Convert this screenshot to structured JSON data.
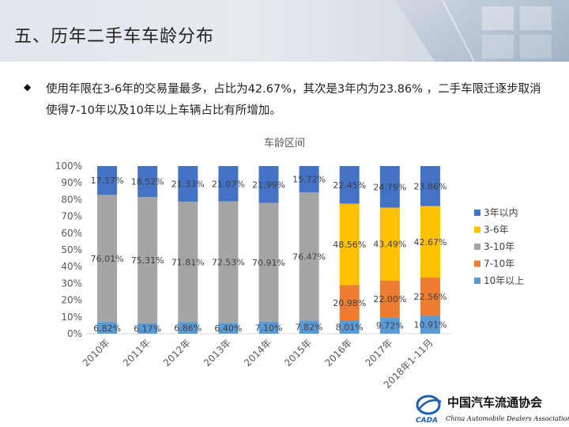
{
  "slide": {
    "title": "五、历年二手车车龄分布",
    "bullet": "使用年限在3-6年的交易量最多，占比为42.67%，其次是3年内为23.86% ，二手车限迁逐步取消使得7-10年以及10年以上车辆占比有所增加。"
  },
  "logo": {
    "mark": "CADA",
    "name_cn": "中国汽车流通协会",
    "name_en": "China Automobile Dealers Association"
  },
  "chart_data": {
    "type": "bar",
    "stacked": "percent",
    "title": "车龄区间",
    "categories": [
      "2010年",
      "2011年",
      "2012年",
      "2013年",
      "2014年",
      "2015年",
      "2016年",
      "2017年",
      "2018年1-11月"
    ],
    "y_ticks": [
      "0%",
      "10%",
      "20%",
      "30%",
      "40%",
      "50%",
      "60%",
      "70%",
      "80%",
      "90%",
      "100%"
    ],
    "ylim": [
      0,
      100
    ],
    "legend_position": "right",
    "series": [
      {
        "name": "10年以上",
        "color": "#5b9bd5",
        "values": [
          6.82,
          6.17,
          6.86,
          6.4,
          7.1,
          7.82,
          8.01,
          9.72,
          10.91
        ],
        "labels": [
          "6.82%",
          "6.17%",
          "6.86%",
          "6.40%",
          "7.10%",
          "7.82%",
          "8.01%",
          "9.72%",
          "10.91%"
        ]
      },
      {
        "name": "7-10年",
        "color": "#ed7d31",
        "values": [
          0,
          0,
          0,
          0,
          0,
          0,
          20.98,
          22.0,
          22.56
        ],
        "labels": [
          "",
          "",
          "",
          "",
          "",
          "",
          "20.98%",
          "22.00%",
          "22.56%"
        ]
      },
      {
        "name": "3-10年",
        "color": "#a5a5a5",
        "values": [
          76.01,
          75.31,
          71.81,
          72.53,
          70.91,
          76.47,
          0,
          0,
          0
        ],
        "labels": [
          "76.01%",
          "75.31%",
          "71.81%",
          "72.53%",
          "70.91%",
          "76.47%",
          "",
          "",
          ""
        ]
      },
      {
        "name": "3-6年",
        "color": "#ffc000",
        "values": [
          0,
          0,
          0,
          0,
          0,
          0,
          48.56,
          43.49,
          42.67
        ],
        "labels": [
          "",
          "",
          "",
          "",
          "",
          "",
          "48.56%",
          "43.49%",
          "42.67%"
        ]
      },
      {
        "name": "3年以内",
        "color": "#4472c4",
        "values": [
          17.17,
          18.52,
          21.33,
          21.07,
          21.99,
          15.72,
          22.45,
          24.79,
          23.86
        ],
        "labels": [
          "17.17%",
          "18.52%",
          "21.33%",
          "21.07%",
          "21.99%",
          "15.72%",
          "22.45%",
          "24.79%",
          "23.86%"
        ]
      }
    ],
    "legend_order": [
      "3年以内",
      "3-6年",
      "3-10年",
      "7-10年",
      "10年以上"
    ]
  }
}
